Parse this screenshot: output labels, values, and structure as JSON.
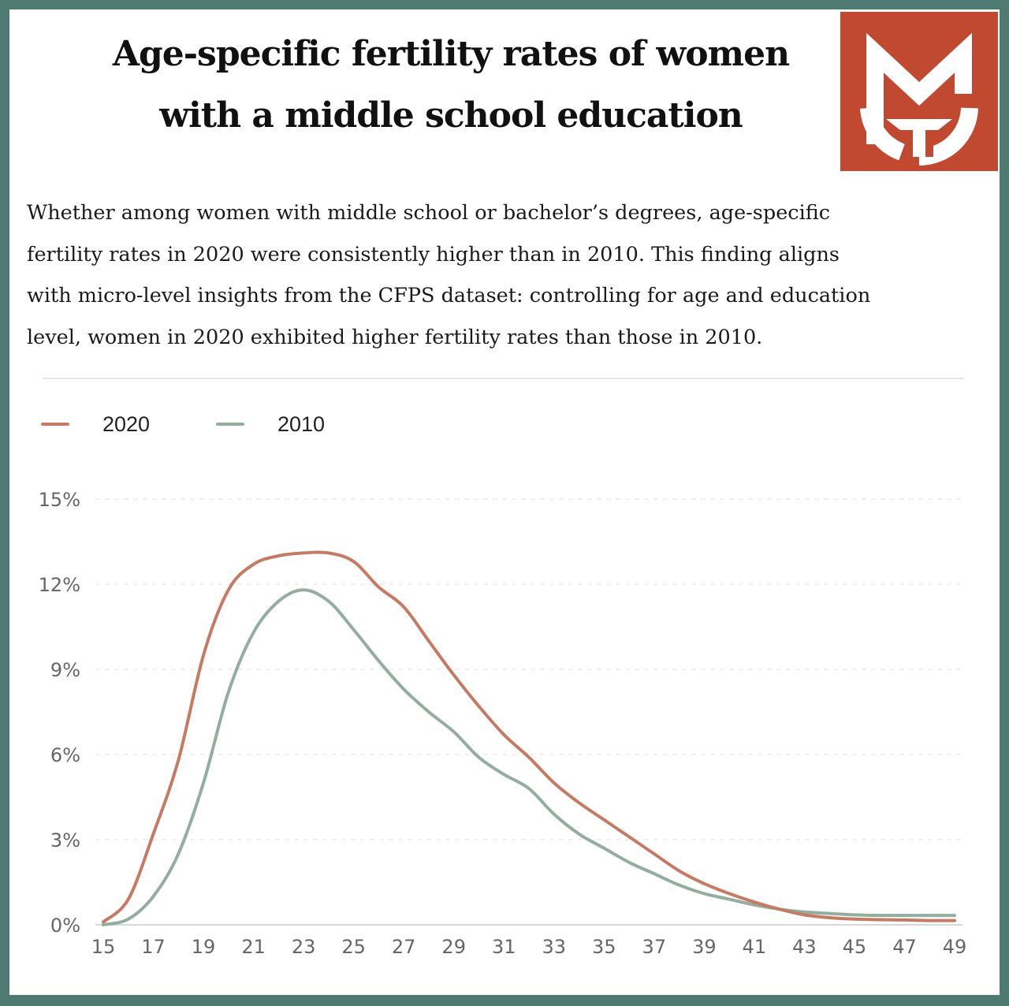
{
  "header": {
    "title_line1": "Age-specific fertility rates of women",
    "title_line2": "with a middle school education"
  },
  "logo": {
    "icon": "mg-logo-icon",
    "color": "#c0492f"
  },
  "description": {
    "lines": [
      "Whether among women with middle school or bachelor’s degrees, age-specific",
      "fertility rates in 2020 were consistently higher than in 2010. This finding aligns",
      "with micro-level insights from the CFPS dataset: controlling for age and education",
      "level, women in 2020 exhibited higher fertility rates than those in 2010."
    ]
  },
  "chart_data": {
    "type": "line",
    "title": "",
    "xlabel": "",
    "ylabel": "",
    "x": [
      15,
      16,
      17,
      18,
      19,
      20,
      21,
      22,
      23,
      24,
      25,
      26,
      27,
      28,
      29,
      30,
      31,
      32,
      33,
      34,
      35,
      36,
      37,
      38,
      39,
      40,
      41,
      42,
      43,
      44,
      45,
      46,
      47,
      48,
      49
    ],
    "x_tick_labels": [
      "15",
      "17",
      "19",
      "21",
      "23",
      "25",
      "27",
      "29",
      "31",
      "33",
      "35",
      "37",
      "39",
      "41",
      "43",
      "45",
      "47",
      "49"
    ],
    "y_tick_labels": [
      "0%",
      "3%",
      "6%",
      "9%",
      "12%",
      "15%"
    ],
    "y_ticks": [
      0,
      3,
      6,
      9,
      12,
      15
    ],
    "ylim": [
      0,
      15
    ],
    "xlim": [
      15,
      49
    ],
    "grid": "horizontal-dashed",
    "legend_position": "top-left",
    "series": [
      {
        "name": "2020",
        "color": "#c57b63",
        "values": [
          0.1,
          0.9,
          3.2,
          5.8,
          9.5,
          11.8,
          12.7,
          13.0,
          13.1,
          13.1,
          12.8,
          11.9,
          11.2,
          10.0,
          8.8,
          7.7,
          6.7,
          5.9,
          5.0,
          4.3,
          3.7,
          3.1,
          2.5,
          1.9,
          1.45,
          1.1,
          0.8,
          0.55,
          0.35,
          0.25,
          0.2,
          0.18,
          0.17,
          0.15,
          0.15
        ]
      },
      {
        "name": "2010",
        "color": "#93ad9f",
        "values": [
          0.0,
          0.2,
          1.0,
          2.5,
          5.0,
          8.2,
          10.3,
          11.4,
          11.8,
          11.4,
          10.4,
          9.3,
          8.3,
          7.5,
          6.8,
          5.9,
          5.3,
          4.8,
          3.9,
          3.2,
          2.7,
          2.2,
          1.8,
          1.4,
          1.1,
          0.9,
          0.7,
          0.55,
          0.45,
          0.4,
          0.35,
          0.33,
          0.33,
          0.33,
          0.33
        ]
      }
    ]
  }
}
